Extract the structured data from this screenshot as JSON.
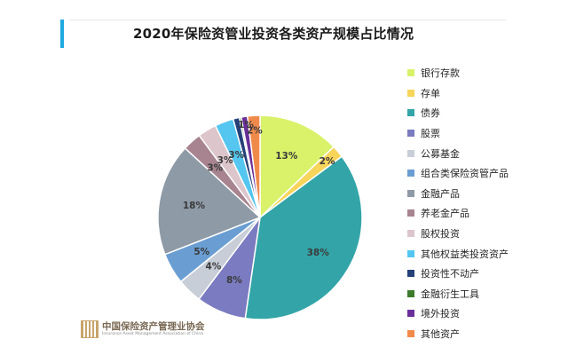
{
  "chart_data": {
    "type": "pie",
    "title": "2020年保险资管业投资各类资产规模占比情况",
    "legend_position": "right",
    "slices": [
      {
        "label": "银行存款",
        "value": 13,
        "display": "13%",
        "color": "#d9f26a"
      },
      {
        "label": "存单",
        "value": 2,
        "display": "2%",
        "color": "#f7d45a"
      },
      {
        "label": "债券",
        "value": 38,
        "display": "38%",
        "color": "#33a5a8"
      },
      {
        "label": "股票",
        "value": 8,
        "display": "8%",
        "color": "#7a7bc0"
      },
      {
        "label": "公募基金",
        "value": 4,
        "display": "4%",
        "color": "#c7ced8"
      },
      {
        "label": "组合类保险资管产品",
        "value": 5,
        "display": "5%",
        "color": "#6a9ed2"
      },
      {
        "label": "金融产品",
        "value": 18,
        "display": "18%",
        "color": "#8e9aa6"
      },
      {
        "label": "养老金产品",
        "value": 3,
        "display": "3%",
        "color": "#a78490"
      },
      {
        "label": "股权投资",
        "value": 3,
        "display": "3%",
        "color": "#dcc5cb"
      },
      {
        "label": "其他权益类投资资产",
        "value": 3,
        "display": "3%",
        "color": "#54c6f0"
      },
      {
        "label": "投资性不动产",
        "value": 1,
        "display": "",
        "color": "#25407a"
      },
      {
        "label": "金融衍生工具",
        "value": 0.3,
        "display": "",
        "color": "#3c7a2a"
      },
      {
        "label": "境外投资",
        "value": 1,
        "display": "1%",
        "color": "#6a2f9a"
      },
      {
        "label": "其他资产",
        "value": 2,
        "display": "2%",
        "color": "#f08a4b"
      }
    ]
  },
  "logo": {
    "name_cn": "中国保险资产管理业协会",
    "name_en": "Insurance Asset Management Association of China"
  }
}
